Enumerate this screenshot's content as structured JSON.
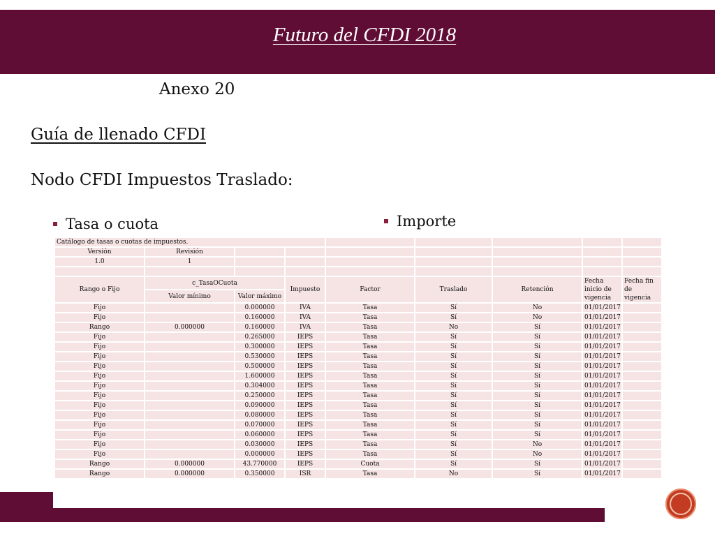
{
  "slide": {
    "title": "Futuro del CFDI 2018",
    "subtitle": "Anexo 20",
    "guide": "Guía de llenado CFDI",
    "node": "Nodo CFDI Impuestos Traslado:",
    "bullets": [
      "Tasa o cuota",
      "Importe"
    ]
  },
  "table": {
    "caption": "Catálogo de tasas o cuotas de impuestos.",
    "version_label": "Versión",
    "revision_label": "Revisión",
    "version": "1.0",
    "revision": "1",
    "headers": {
      "rango_o_fijo": "Rango o Fijo",
      "group": "c_TasaOCuota",
      "valor_minimo": "Valor mínimo",
      "valor_maximo": "Valor máximo",
      "impuesto": "Impuesto",
      "factor": "Factor",
      "traslado": "Traslado",
      "retencion": "Retención",
      "fecha_inicio": "Fecha inicio de vigencia",
      "fecha_fin": "Fecha fin de vigencia"
    },
    "rows": [
      [
        "Fijo",
        "",
        "0.000000",
        "IVA",
        "Tasa",
        "Sí",
        "No",
        "01/01/2017",
        ""
      ],
      [
        "Fijo",
        "",
        "0.160000",
        "IVA",
        "Tasa",
        "Sí",
        "No",
        "01/01/2017",
        ""
      ],
      [
        "Rango",
        "0.000000",
        "0.160000",
        "IVA",
        "Tasa",
        "No",
        "Sí",
        "01/01/2017",
        ""
      ],
      [
        "Fijo",
        "",
        "0.265000",
        "IEPS",
        "Tasa",
        "Sí",
        "Sí",
        "01/01/2017",
        ""
      ],
      [
        "Fijo",
        "",
        "0.300000",
        "IEPS",
        "Tasa",
        "Sí",
        "Sí",
        "01/01/2017",
        ""
      ],
      [
        "Fijo",
        "",
        "0.530000",
        "IEPS",
        "Tasa",
        "Sí",
        "Sí",
        "01/01/2017",
        ""
      ],
      [
        "Fijo",
        "",
        "0.500000",
        "IEPS",
        "Tasa",
        "Sí",
        "Sí",
        "01/01/2017",
        ""
      ],
      [
        "Fijo",
        "",
        "1.600000",
        "IEPS",
        "Tasa",
        "Sí",
        "Sí",
        "01/01/2017",
        ""
      ],
      [
        "Fijo",
        "",
        "0.304000",
        "IEPS",
        "Tasa",
        "Sí",
        "Sí",
        "01/01/2017",
        ""
      ],
      [
        "Fijo",
        "",
        "0.250000",
        "IEPS",
        "Tasa",
        "Sí",
        "Sí",
        "01/01/2017",
        ""
      ],
      [
        "Fijo",
        "",
        "0.090000",
        "IEPS",
        "Tasa",
        "Sí",
        "Sí",
        "01/01/2017",
        ""
      ],
      [
        "Fijo",
        "",
        "0.080000",
        "IEPS",
        "Tasa",
        "Sí",
        "Sí",
        "01/01/2017",
        ""
      ],
      [
        "Fijo",
        "",
        "0.070000",
        "IEPS",
        "Tasa",
        "Sí",
        "Sí",
        "01/01/2017",
        ""
      ],
      [
        "Fijo",
        "",
        "0.060000",
        "IEPS",
        "Tasa",
        "Sí",
        "Sí",
        "01/01/2017",
        ""
      ],
      [
        "Fijo",
        "",
        "0.030000",
        "IEPS",
        "Tasa",
        "Sí",
        "No",
        "01/01/2017",
        ""
      ],
      [
        "Fijo",
        "",
        "0.000000",
        "IEPS",
        "Tasa",
        "Sí",
        "No",
        "01/01/2017",
        ""
      ],
      [
        "Rango",
        "0.000000",
        "43.770000",
        "IEPS",
        "Cuota",
        "Sí",
        "Sí",
        "01/01/2017",
        ""
      ],
      [
        "Rango",
        "0.000000",
        "0.350000",
        "ISR",
        "Tasa",
        "No",
        "Sí",
        "01/01/2017",
        ""
      ]
    ]
  },
  "colors": {
    "brand": "#600d35",
    "table_cell": "#f6e3e4",
    "logo": "#c23b22"
  },
  "icons": {
    "logo": "presentation-logo-icon"
  }
}
